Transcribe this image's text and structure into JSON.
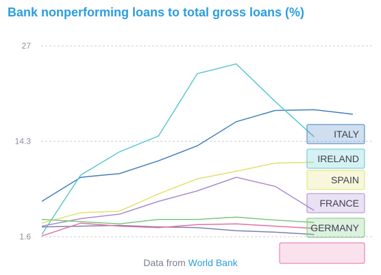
{
  "page": {
    "title": "Bank nonperforming loans to total gross loans (%)",
    "footer_prefix": "Data from",
    "footer_source": "World Bank"
  },
  "chart_data": {
    "type": "line",
    "title": "Bank nonperforming loans to total gross loans (%)",
    "xlabel": "",
    "ylabel": "",
    "y_ticks": [
      1.6,
      14.3,
      27
    ],
    "ylim": [
      1.6,
      27
    ],
    "x": [
      0,
      1,
      2,
      3,
      4,
      5,
      6,
      7,
      8
    ],
    "grid": "dashed horizontal",
    "legend": "right, stacked labels",
    "series": [
      {
        "name": "ITALY",
        "color": "#3f7fbf",
        "values": [
          6.3,
          9.5,
          10.0,
          11.7,
          13.7,
          16.9,
          18.4,
          18.5,
          17.9
        ]
      },
      {
        "name": "IRELAND",
        "color": "#5cc6cf",
        "values": [
          1.9,
          9.8,
          12.9,
          15.0,
          23.3,
          24.6,
          19.6,
          14.9,
          null
        ]
      },
      {
        "name": "SPAIN",
        "color": "#e2e06e",
        "values": [
          3.4,
          4.8,
          5.0,
          7.3,
          9.3,
          10.3,
          11.4,
          11.5,
          null
        ]
      },
      {
        "name": "FRANCE",
        "color": "#a78bcf",
        "values": [
          3.0,
          4.0,
          4.6,
          6.3,
          7.7,
          9.5,
          8.3,
          5.1,
          null
        ]
      },
      {
        "name": "GERMANY",
        "color": "#7ac77e",
        "values": [
          3.9,
          3.6,
          3.3,
          3.9,
          3.9,
          4.2,
          3.8,
          3.5,
          null
        ]
      },
      {
        "name": "",
        "color": "#7b80b3",
        "values": [
          2.9,
          3.0,
          3.1,
          2.9,
          2.8,
          2.4,
          2.2,
          1.9,
          null
        ]
      },
      {
        "name": "",
        "color": "#e56ea0",
        "values": [
          1.7,
          3.4,
          3.0,
          2.8,
          3.2,
          3.3,
          3.0,
          2.7,
          null
        ]
      }
    ]
  }
}
